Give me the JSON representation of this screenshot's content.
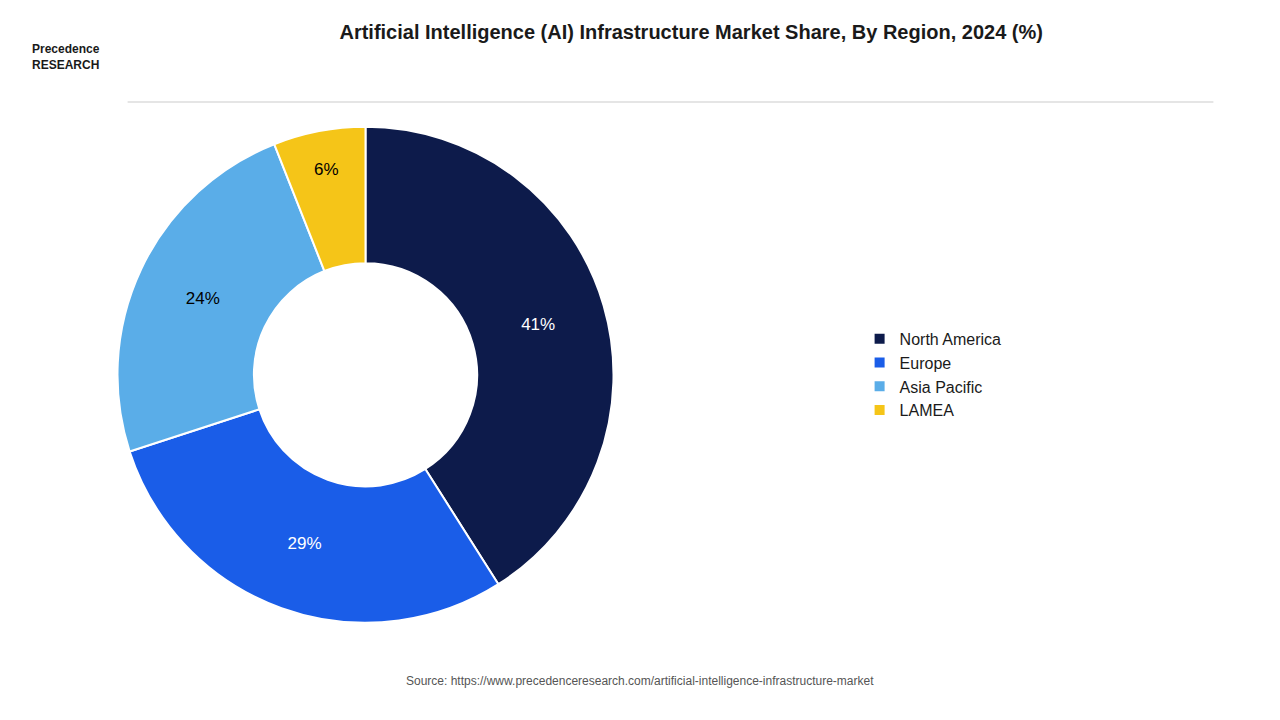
{
  "chart_data": {
    "type": "pie",
    "title": "Artificial Intelligence (AI) Infrastructure Market Share, By Region, 2024 (%)",
    "categories": [
      "North America",
      "Europe",
      "Asia Pacific",
      "LAMEA"
    ],
    "values": [
      41,
      29,
      24,
      6
    ],
    "value_labels": [
      "41%",
      "29%",
      "24%",
      "6%"
    ],
    "colors": [
      "#0d1b4b",
      "#1a5de8",
      "#5aade8",
      "#f5c518"
    ],
    "data_labels": true,
    "legend": "right",
    "annotations": [
      "Precedence\nRESEARCH",
      "Source: https://www.precedenceresearch.com/artificial-intelligence-infrastructure-market"
    ]
  }
}
